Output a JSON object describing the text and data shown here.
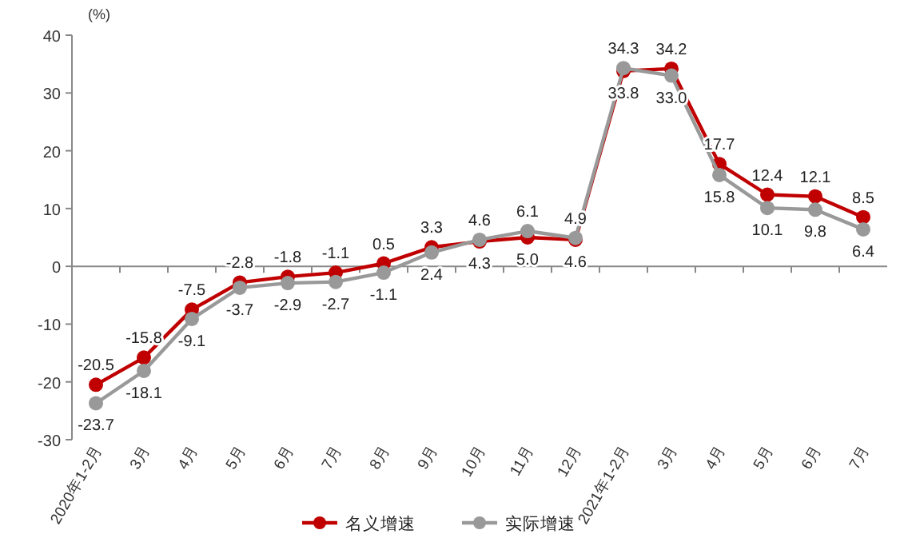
{
  "chart_data": {
    "type": "line",
    "ylabel": "(%)",
    "categories": [
      "2020年1-2月",
      "3月",
      "4月",
      "5月",
      "6月",
      "7月",
      "8月",
      "9月",
      "10月",
      "11月",
      "12月",
      "2021年1-2月",
      "3月",
      "4月",
      "5月",
      "6月",
      "7月"
    ],
    "series": [
      {
        "name": "名义增速",
        "color": "#c00000",
        "values": [
          -20.5,
          -15.8,
          -7.5,
          -2.8,
          -1.8,
          -1.1,
          0.5,
          3.3,
          4.3,
          5.0,
          4.6,
          33.8,
          34.2,
          17.7,
          12.4,
          12.1,
          8.5
        ],
        "value_labels": [
          "-20.5",
          "-15.8",
          "-7.5",
          "-2.8",
          "-1.8",
          "-1.1",
          "0.5",
          "3.3",
          "4.3",
          "5.0",
          "4.6",
          "33.8",
          "34.2",
          "17.7",
          "12.4",
          "12.1",
          "8.5"
        ]
      },
      {
        "name": "实际增速",
        "color": "#999999",
        "values": [
          -23.7,
          -18.1,
          -9.1,
          -3.7,
          -2.9,
          -2.7,
          -1.1,
          2.4,
          4.6,
          6.1,
          4.9,
          34.3,
          33.0,
          15.8,
          10.1,
          9.8,
          6.4
        ],
        "value_labels": [
          "-23.7",
          "-18.1",
          "-9.1",
          "-3.7",
          "-2.9",
          "-2.7",
          "-1.1",
          "2.4",
          "4.6",
          "6.1",
          "4.9",
          "34.3",
          "33.0",
          "15.8",
          "10.1",
          "9.8",
          "6.4"
        ]
      }
    ],
    "ylim": [
      -30,
      40
    ],
    "yticks": [
      -30,
      -20,
      -10,
      0,
      10,
      20,
      30,
      40
    ],
    "legend": "bottom",
    "marker": "circle",
    "line_style": "solid"
  }
}
